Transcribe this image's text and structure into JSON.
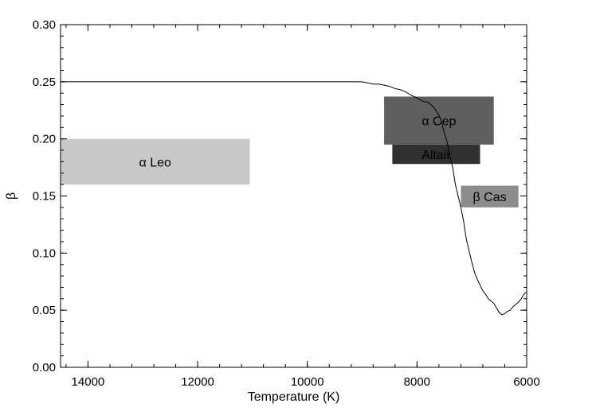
{
  "chart_data": {
    "type": "line",
    "title": "",
    "xlabel": "Temperature (K)",
    "ylabel": "β",
    "xlim": [
      14500,
      6000
    ],
    "ylim": [
      0.0,
      0.3
    ],
    "x_reversed": true,
    "grid": false,
    "legend": "none",
    "x_ticks": [
      14000,
      12000,
      10000,
      8000,
      6000
    ],
    "x_tick_labels": [
      "14000",
      "12000",
      "10000",
      "8000",
      "6000"
    ],
    "x_minor_step": 400,
    "y_ticks": [
      0.0,
      0.05,
      0.1,
      0.15,
      0.2,
      0.25,
      0.3
    ],
    "y_tick_labels": [
      "0.00",
      "0.05",
      "0.10",
      "0.15",
      "0.20",
      "0.25",
      "0.30"
    ],
    "y_minor_step": 0.01,
    "series": [
      {
        "color": "#000000",
        "x": [
          14500,
          9000,
          8900,
          8800,
          8700,
          8600,
          8500,
          8400,
          8300,
          8200,
          8100,
          8000,
          7900,
          7800,
          7700,
          7600,
          7550,
          7500,
          7450,
          7400,
          7350,
          7300,
          7250,
          7200,
          7150,
          7100,
          7050,
          7000,
          6950,
          6900,
          6850,
          6800,
          6750,
          6700,
          6650,
          6600,
          6550,
          6500,
          6450,
          6400,
          6350,
          6300,
          6250,
          6200,
          6150,
          6100,
          6050,
          6000
        ],
        "y": [
          0.25,
          0.25,
          0.249,
          0.248,
          0.248,
          0.247,
          0.246,
          0.244,
          0.243,
          0.241,
          0.238,
          0.236,
          0.233,
          0.232,
          0.228,
          0.221,
          0.214,
          0.205,
          0.197,
          0.185,
          0.175,
          0.16,
          0.15,
          0.14,
          0.128,
          0.112,
          0.102,
          0.092,
          0.083,
          0.077,
          0.072,
          0.067,
          0.064,
          0.06,
          0.058,
          0.056,
          0.052,
          0.048,
          0.046,
          0.047,
          0.049,
          0.05,
          0.053,
          0.055,
          0.057,
          0.06,
          0.064,
          0.066
        ]
      }
    ],
    "regions": [
      {
        "label": "α Leo",
        "x_range": [
          14500,
          11050
        ],
        "y_range": [
          0.16,
          0.2
        ],
        "color": "#c8c8c8",
        "text_color": "#000000"
      },
      {
        "label": "α Cep",
        "x_range": [
          8600,
          6600
        ],
        "y_range": [
          0.195,
          0.237
        ],
        "color": "#5f5f5f",
        "text_color": "#000000"
      },
      {
        "label": "Altair",
        "x_range": [
          8450,
          6850
        ],
        "y_range": [
          0.178,
          0.195
        ],
        "color": "#303030",
        "text_color": "#000000"
      },
      {
        "label": "β Cas",
        "x_range": [
          7200,
          6150
        ],
        "y_range": [
          0.14,
          0.159
        ],
        "color": "#8c8c8c",
        "text_color": "#000000"
      }
    ]
  }
}
